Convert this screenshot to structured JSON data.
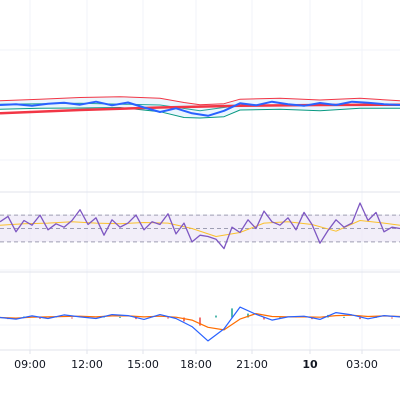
{
  "colors": {
    "background": "#ffffff",
    "grid": "#f0f3fa",
    "axis_line": "#e0e3eb",
    "axis_text": "#131722",
    "price_line": "#2962ff",
    "ma_long": "#f23645",
    "band_upper": "#f23645",
    "band_lower": "#089981",
    "band_mid": "#26a69a",
    "band_fill": "#e3f2fd",
    "rsi_line": "#7e57c2",
    "rsi_ma": "#fbc02d",
    "rsi_band_fill": "#ede7f6",
    "rsi_band_border": "#9e9eb3",
    "macd_line": "#2962ff",
    "signal_line": "#ff6d00",
    "hist_pos": "#26a69a",
    "hist_neg": "#ef5350"
  },
  "chart_data": {
    "type": "line",
    "grid": true,
    "x_axis": {
      "tick_labels": [
        "09:00",
        "12:00",
        "15:00",
        "18:00",
        "21:00",
        "10",
        "03:00"
      ],
      "bold_ticks": [
        "10"
      ]
    },
    "panes": [
      {
        "name": "price",
        "ylim": [
          -50,
          40
        ],
        "series": [
          {
            "role": "price",
            "color_key": "price_line",
            "x": [
              0,
              4,
              8,
              12,
              16,
              20,
              24,
              28,
              32,
              36,
              40,
              44,
              48,
              52,
              56,
              60,
              64,
              68,
              72,
              76,
              80,
              84,
              88,
              92,
              96,
              100
            ],
            "values": [
              1.0,
              1.5,
              0.6,
              1.8,
              2.4,
              1.2,
              3.0,
              0.8,
              2.5,
              -0.5,
              -3.2,
              -1.0,
              -4.0,
              -5.5,
              -2.5,
              2.0,
              0.8,
              3.0,
              1.5,
              0.5,
              2.2,
              1.0,
              3.0,
              2.4,
              1.5,
              1.0
            ]
          },
          {
            "role": "long-ma",
            "color_key": "ma_long",
            "x": [
              0,
              20,
              40,
              60,
              80,
              100
            ],
            "values": [
              -4.0,
              -2.0,
              -0.5,
              0.5,
              1.0,
              1.2
            ]
          },
          {
            "role": "band-upper",
            "color_key": "band_upper",
            "x": [
              0,
              10,
              20,
              30,
              40,
              46,
              50,
              56,
              60,
              70,
              80,
              90,
              100
            ],
            "values": [
              3.5,
              4.5,
              5.5,
              6.0,
              5.0,
              2.5,
              1.2,
              1.8,
              4.5,
              5.0,
              4.0,
              5.0,
              3.5
            ]
          },
          {
            "role": "band-lower",
            "color_key": "band_lower",
            "x": [
              0,
              10,
              20,
              30,
              40,
              46,
              50,
              56,
              60,
              70,
              80,
              90,
              100
            ],
            "values": [
              -1.5,
              -1.0,
              -0.8,
              -0.5,
              -3.0,
              -6.5,
              -6.8,
              -6.0,
              -2.0,
              -1.5,
              -2.5,
              -1.0,
              -1.0
            ]
          },
          {
            "role": "band-mid",
            "color_key": "band_mid",
            "x": [
              0,
              20,
              40,
              50,
              60,
              80,
              100
            ],
            "values": [
              1.5,
              2.0,
              1.0,
              -2.5,
              0.8,
              1.0,
              1.2
            ]
          }
        ]
      },
      {
        "name": "rsi",
        "ylim": [
          0,
          100
        ],
        "band": [
          30,
          70
        ],
        "series": [
          {
            "role": "rsi",
            "color_key": "rsi_line",
            "x": [
              0,
              2,
              4,
              6,
              8,
              10,
              12,
              14,
              16,
              18,
              20,
              22,
              24,
              26,
              28,
              30,
              32,
              34,
              36,
              38,
              40,
              42,
              44,
              46,
              48,
              50,
              52,
              54,
              56,
              58,
              60,
              62,
              64,
              66,
              68,
              70,
              72,
              74,
              76,
              78,
              80,
              82,
              84,
              86,
              88,
              90,
              92,
              94,
              96,
              98,
              100
            ],
            "values": [
              60,
              68,
              45,
              62,
              55,
              70,
              48,
              57,
              52,
              62,
              78,
              56,
              66,
              40,
              63,
              52,
              58,
              70,
              48,
              60,
              56,
              72,
              42,
              58,
              30,
              40,
              38,
              34,
              20,
              52,
              44,
              63,
              50,
              76,
              60,
              55,
              66,
              48,
              74,
              56,
              28,
              47,
              63,
              52,
              58,
              88,
              62,
              74,
              45,
              52,
              50
            ]
          },
          {
            "role": "rsi-ma",
            "color_key": "rsi_ma",
            "x": [
              0,
              6,
              12,
              18,
              24,
              30,
              36,
              42,
              48,
              54,
              60,
              66,
              72,
              78,
              84,
              90,
              96,
              100
            ],
            "values": [
              55,
              57,
              58,
              60,
              58,
              57,
              59,
              58,
              50,
              38,
              44,
              58,
              60,
              56,
              46,
              62,
              58,
              55
            ]
          }
        ]
      },
      {
        "name": "macd",
        "ylim": [
          -10,
          10
        ],
        "series": [
          {
            "role": "macd",
            "color_key": "macd_line",
            "x": [
              0,
              4,
              8,
              12,
              16,
              20,
              24,
              28,
              32,
              36,
              40,
              44,
              48,
              52,
              56,
              60,
              64,
              68,
              72,
              76,
              80,
              84,
              88,
              92,
              96,
              100
            ],
            "values": [
              0,
              -0.5,
              0.5,
              -0.3,
              0.8,
              0.2,
              -0.3,
              0.9,
              0.6,
              -0.6,
              0.9,
              -0.3,
              -2.8,
              -7.2,
              -3.5,
              3.2,
              1.0,
              -0.8,
              0.2,
              0.4,
              -0.6,
              1.5,
              0.8,
              -0.4,
              0.6,
              0.2
            ]
          },
          {
            "role": "signal",
            "color_key": "signal_line",
            "x": [
              0,
              4,
              8,
              12,
              16,
              20,
              24,
              28,
              32,
              36,
              40,
              44,
              48,
              52,
              56,
              60,
              64,
              68,
              72,
              76,
              80,
              84,
              88,
              92,
              96,
              100
            ],
            "values": [
              0,
              -0.2,
              0.1,
              0.2,
              0.3,
              0.4,
              0.2,
              0.5,
              0.5,
              0.2,
              0.4,
              0.1,
              -0.8,
              -3.0,
              -3.8,
              -0.5,
              1.2,
              0.3,
              0.2,
              0.2,
              0.1,
              0.6,
              0.7,
              0.3,
              0.5,
              0.3
            ]
          },
          {
            "role": "histogram",
            "x": [
              2,
              6,
              10,
              14,
              18,
              22,
              26,
              30,
              34,
              38,
              42,
              46,
              50,
              54,
              58,
              62,
              66,
              70,
              74,
              78,
              82,
              86,
              90,
              94,
              98
            ],
            "values": [
              -0.5,
              0.3,
              -0.4,
              0.4,
              -0.3,
              0.2,
              0.3,
              0.2,
              -0.5,
              0.4,
              -0.3,
              -1.2,
              -2.5,
              0.6,
              2.8,
              1.2,
              -0.6,
              0.2,
              0.3,
              -0.5,
              0.8,
              0.2,
              -0.5,
              0.2,
              -0.3
            ]
          }
        ]
      }
    ]
  }
}
